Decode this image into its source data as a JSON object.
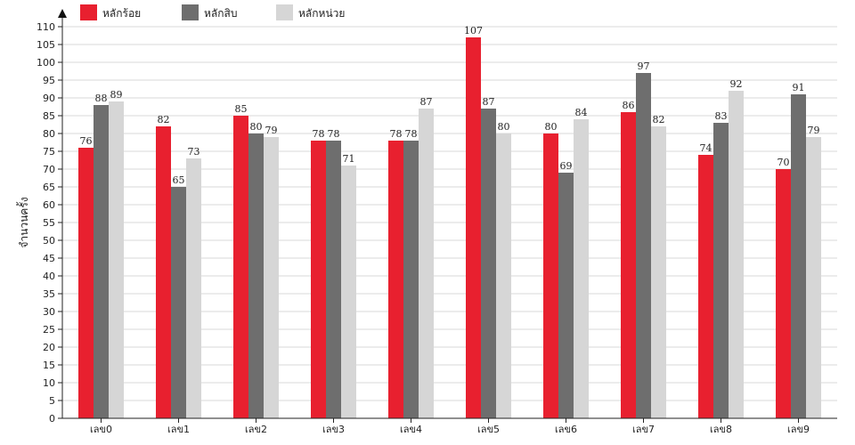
{
  "chart_data": {
    "type": "bar",
    "title": "",
    "xlabel": "",
    "ylabel": "จำนวนครั้ง",
    "ylim": [
      0,
      110
    ],
    "ytick_step": 5,
    "grid": true,
    "legend_position": "top-left",
    "categories": [
      "เลข0",
      "เลข1",
      "เลข2",
      "เลข3",
      "เลข4",
      "เลข5",
      "เลข6",
      "เลข7",
      "เลข8",
      "เลข9"
    ],
    "series": [
      {
        "name": "หลักร้อย",
        "color": "#e8202f",
        "values": [
          76,
          82,
          85,
          78,
          78,
          107,
          80,
          86,
          74,
          70
        ]
      },
      {
        "name": "หลักสิบ",
        "color": "#6e6e6e",
        "values": [
          88,
          65,
          80,
          78,
          78,
          87,
          69,
          97,
          83,
          91
        ]
      },
      {
        "name": "หลักหน่วย",
        "color": "#d6d6d6",
        "values": [
          89,
          73,
          79,
          71,
          87,
          80,
          84,
          82,
          92,
          79
        ]
      }
    ]
  }
}
